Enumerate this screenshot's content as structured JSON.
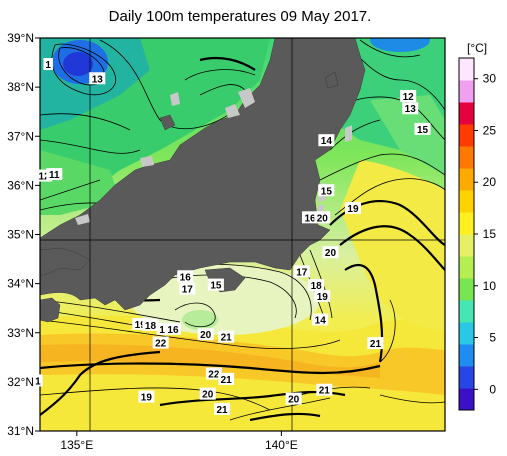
{
  "title": "Daily 100m temperatures 09 May 2017.",
  "lat_labels": [
    {
      "value": 39,
      "text": "39°N"
    },
    {
      "value": 38,
      "text": "38°N"
    },
    {
      "value": 37,
      "text": "37°N"
    },
    {
      "value": 36,
      "text": "36°N"
    },
    {
      "value": 35,
      "text": "35°N"
    },
    {
      "value": 34,
      "text": "34°N"
    },
    {
      "value": 33,
      "text": "33°N"
    },
    {
      "value": 32,
      "text": "32°N"
    },
    {
      "value": 31,
      "text": "31°N"
    }
  ],
  "lon_labels": [
    {
      "value": 135,
      "text": "135°E"
    },
    {
      "value": 140,
      "text": "140°E"
    }
  ],
  "colorbar": {
    "unit": "[°C]",
    "min": -2,
    "max": 32,
    "ticks": [
      "0",
      "5",
      "10",
      "15",
      "20",
      "25",
      "30"
    ],
    "tick_values": [
      0,
      5,
      10,
      15,
      20,
      25,
      30
    ],
    "colors": [
      "#3a10c8",
      "#2846e8",
      "#1e8cf0",
      "#28c8e6",
      "#46e6b4",
      "#78e650",
      "#b4ee50",
      "#e6f064",
      "#fff01e",
      "#ffd200",
      "#ffaa00",
      "#ff7800",
      "#ff3c00",
      "#e6003c",
      "#f0a0f0",
      "#ffe6ff"
    ]
  },
  "contour_labels": [
    {
      "text": "1",
      "lon": 134.3,
      "lat": 38.47
    },
    {
      "text": "13",
      "lon": 135.5,
      "lat": 38.18
    },
    {
      "text": "12",
      "lon": 134.2,
      "lat": 36.2
    },
    {
      "text": "11",
      "lon": 134.45,
      "lat": 36.23
    },
    {
      "text": "12",
      "lon": 143.1,
      "lat": 37.82
    },
    {
      "text": "13",
      "lon": 143.15,
      "lat": 37.57
    },
    {
      "text": "15",
      "lon": 143.45,
      "lat": 37.15
    },
    {
      "text": "14",
      "lon": 141.1,
      "lat": 36.92
    },
    {
      "text": "15",
      "lon": 141.1,
      "lat": 35.9
    },
    {
      "text": "19",
      "lon": 141.75,
      "lat": 35.54
    },
    {
      "text": "16",
      "lon": 140.7,
      "lat": 35.35
    },
    {
      "text": "20",
      "lon": 141.0,
      "lat": 35.35
    },
    {
      "text": "20",
      "lon": 141.2,
      "lat": 34.64
    },
    {
      "text": "16",
      "lon": 137.65,
      "lat": 34.15
    },
    {
      "text": "17",
      "lon": 137.7,
      "lat": 33.9
    },
    {
      "text": "15",
      "lon": 138.4,
      "lat": 33.98
    },
    {
      "text": "17",
      "lon": 140.5,
      "lat": 34.25
    },
    {
      "text": "18",
      "lon": 140.85,
      "lat": 33.97
    },
    {
      "text": "19",
      "lon": 141.0,
      "lat": 33.75
    },
    {
      "text": "14",
      "lon": 140.95,
      "lat": 33.27
    },
    {
      "text": "19",
      "lon": 136.55,
      "lat": 33.18
    },
    {
      "text": "18",
      "lon": 136.8,
      "lat": 33.16
    },
    {
      "text": "17",
      "lon": 137.15,
      "lat": 33.08
    },
    {
      "text": "16",
      "lon": 137.35,
      "lat": 33.08
    },
    {
      "text": "20",
      "lon": 138.15,
      "lat": 32.97
    },
    {
      "text": "21",
      "lon": 138.65,
      "lat": 32.92
    },
    {
      "text": "22",
      "lon": 137.05,
      "lat": 32.8
    },
    {
      "text": "21",
      "lon": 142.3,
      "lat": 32.79
    },
    {
      "text": "22",
      "lon": 138.35,
      "lat": 32.17
    },
    {
      "text": "21",
      "lon": 138.65,
      "lat": 32.06
    },
    {
      "text": "1",
      "lon": 134.05,
      "lat": 32.03
    },
    {
      "text": "19",
      "lon": 136.7,
      "lat": 31.7
    },
    {
      "text": "20",
      "lon": 138.2,
      "lat": 31.76
    },
    {
      "text": "20",
      "lon": 140.3,
      "lat": 31.66
    },
    {
      "text": "21",
      "lon": 141.05,
      "lat": 31.84
    },
    {
      "text": "21",
      "lon": 138.55,
      "lat": 31.45
    }
  ]
}
